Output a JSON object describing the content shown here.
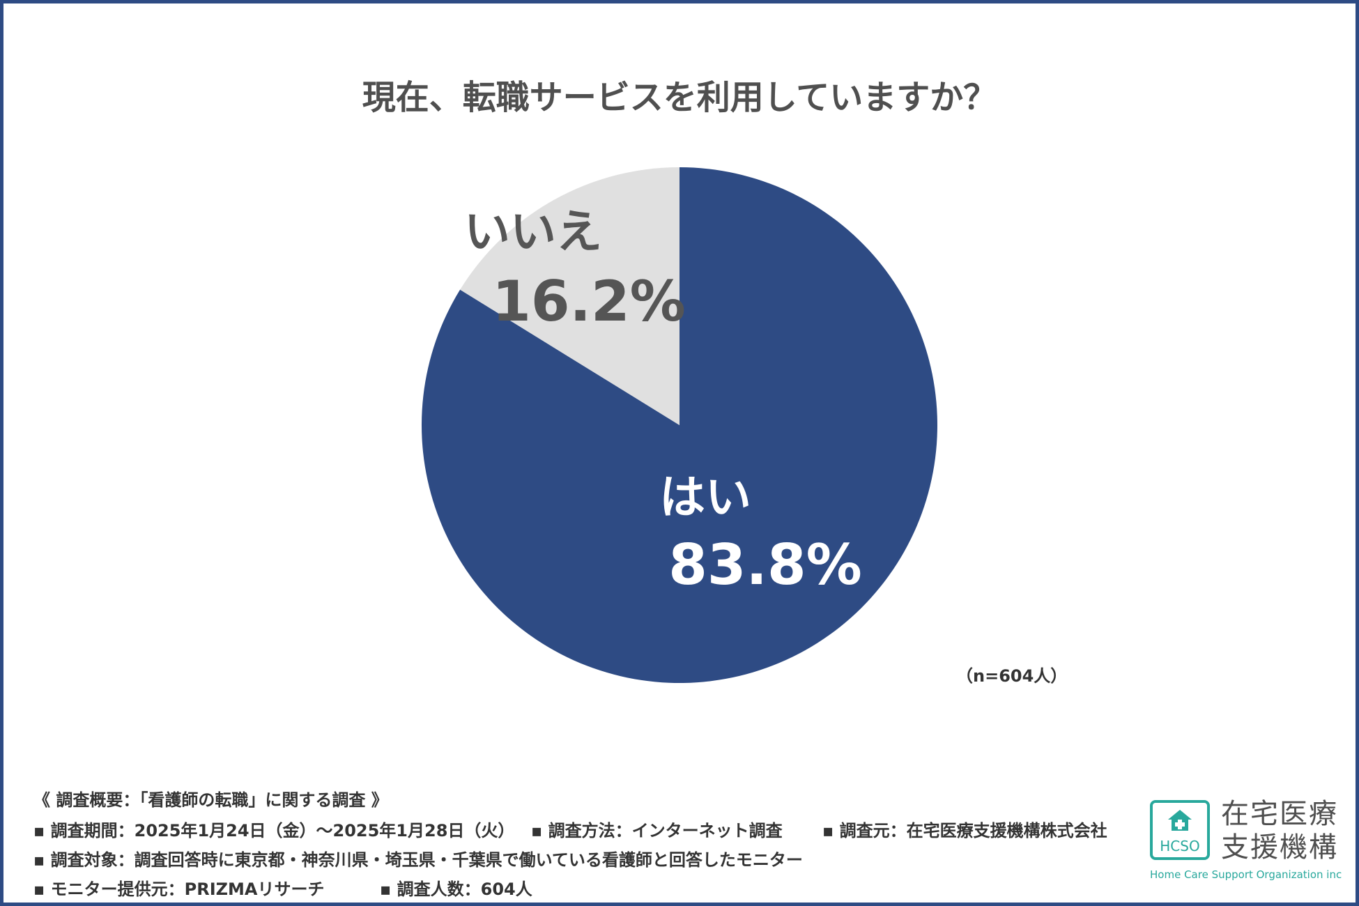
{
  "title": "現在、転職サービスを利用していますか？",
  "chart_data": {
    "type": "pie",
    "title": "現在、転職サービスを利用していますか？",
    "slices": [
      {
        "label": "はい",
        "value": 83.8,
        "value_label": "83.8%",
        "color": "#2e4b84"
      },
      {
        "label": "いいえ",
        "value": 16.2,
        "value_label": "16.2%",
        "color": "#e0e0e0"
      }
    ],
    "start_angle": "12 o'clock",
    "direction": "clockwise"
  },
  "n_note": "（n=604人）",
  "footer": {
    "heading": "《 調査概要：「看護師の転職」に関する調査 》",
    "period": "▪ 調査期間：2025年1月24日（金）～2025年1月28日（火）",
    "method": "▪ 調査方法：インターネット調査",
    "source": "▪ 調査元：在宅医療支援機構株式会社",
    "target": "▪ 調査対象：調査回答時に東京都・神奈川県・埼玉県・千葉県で働いている看護師と回答したモニター",
    "provider": "▪ モニター提供元：PRIZMAリサーチ",
    "count": "▪ 調査人数：604人"
  },
  "logo": {
    "badge_text": "HCSO",
    "org_name_line1": "在宅医療",
    "org_name_line2": "支援機構",
    "org_name_en": "Home Care Support Organization inc",
    "color": "#28a89c"
  }
}
